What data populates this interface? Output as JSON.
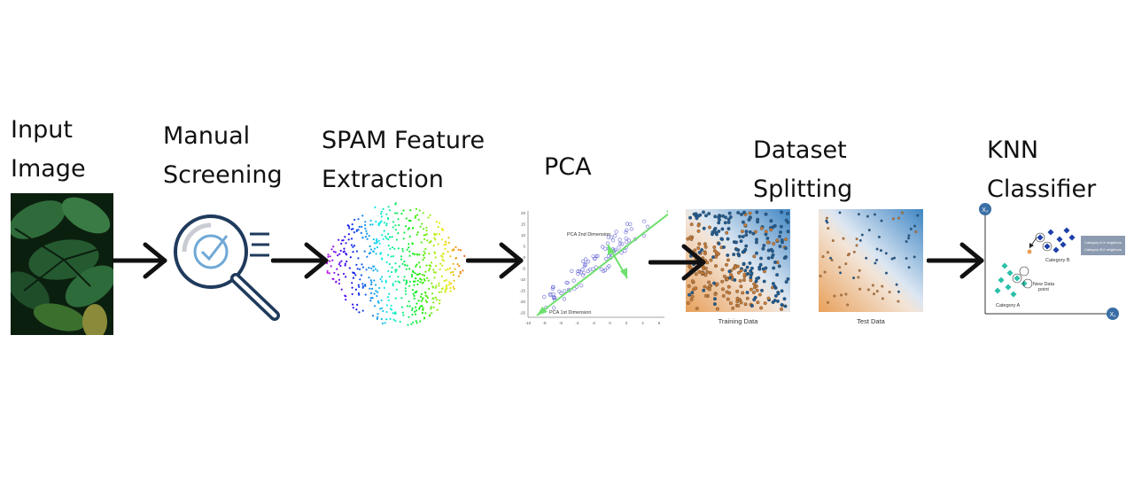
{
  "stages": [
    {
      "id": "input",
      "label_lines": [
        "Input",
        "Image"
      ]
    },
    {
      "id": "screening",
      "label_lines": [
        "Manual",
        "Screening"
      ]
    },
    {
      "id": "spam",
      "label_lines": [
        "SPAM Feature",
        "Extraction"
      ]
    },
    {
      "id": "pca",
      "label_lines": [
        "PCA"
      ]
    },
    {
      "id": "split",
      "label_lines": [
        "Dataset",
        "Splitting"
      ]
    },
    {
      "id": "knn",
      "label_lines": [
        "KNN",
        "Classifier"
      ]
    }
  ],
  "pca_plot": {
    "first_dimension": "PCA 1st Dimension",
    "second_dimension": "PCA 2nd Dimension",
    "y_ticks": [
      "20",
      "15",
      "10",
      "5",
      "0",
      "-5",
      "-10",
      "-15",
      "-20",
      "-25"
    ],
    "x_ticks": [
      "-10",
      "-8",
      "-6",
      "-4",
      "-2",
      "0",
      "2",
      "4",
      "6"
    ]
  },
  "split_panels": {
    "training_label": "Training Data",
    "test_label": "Test Data"
  },
  "knn_plot": {
    "x_axis": "X₁",
    "y_axis": "X₂",
    "category_a": "Category A",
    "category_b": "Category B",
    "new_point_line1": "New Data",
    "new_point_line2": "point",
    "legend_line1": "Category A:3 neighbors",
    "legend_line2": "Category B:2 neighbors"
  },
  "colors": {
    "arrow": "#111111",
    "leaf_dark": "#0f2a14",
    "leaf": "#2f6b3a",
    "magnifier": "#1f3a5c",
    "check": "#6fa8d6",
    "pca_green": "#6ee06e",
    "pca_points": "#6b6bd6",
    "orange": "#e8a05a",
    "blue": "#3f86c4",
    "teal": "#2bbfa8",
    "navy": "#1d3fa8",
    "red": "#cc2222"
  }
}
